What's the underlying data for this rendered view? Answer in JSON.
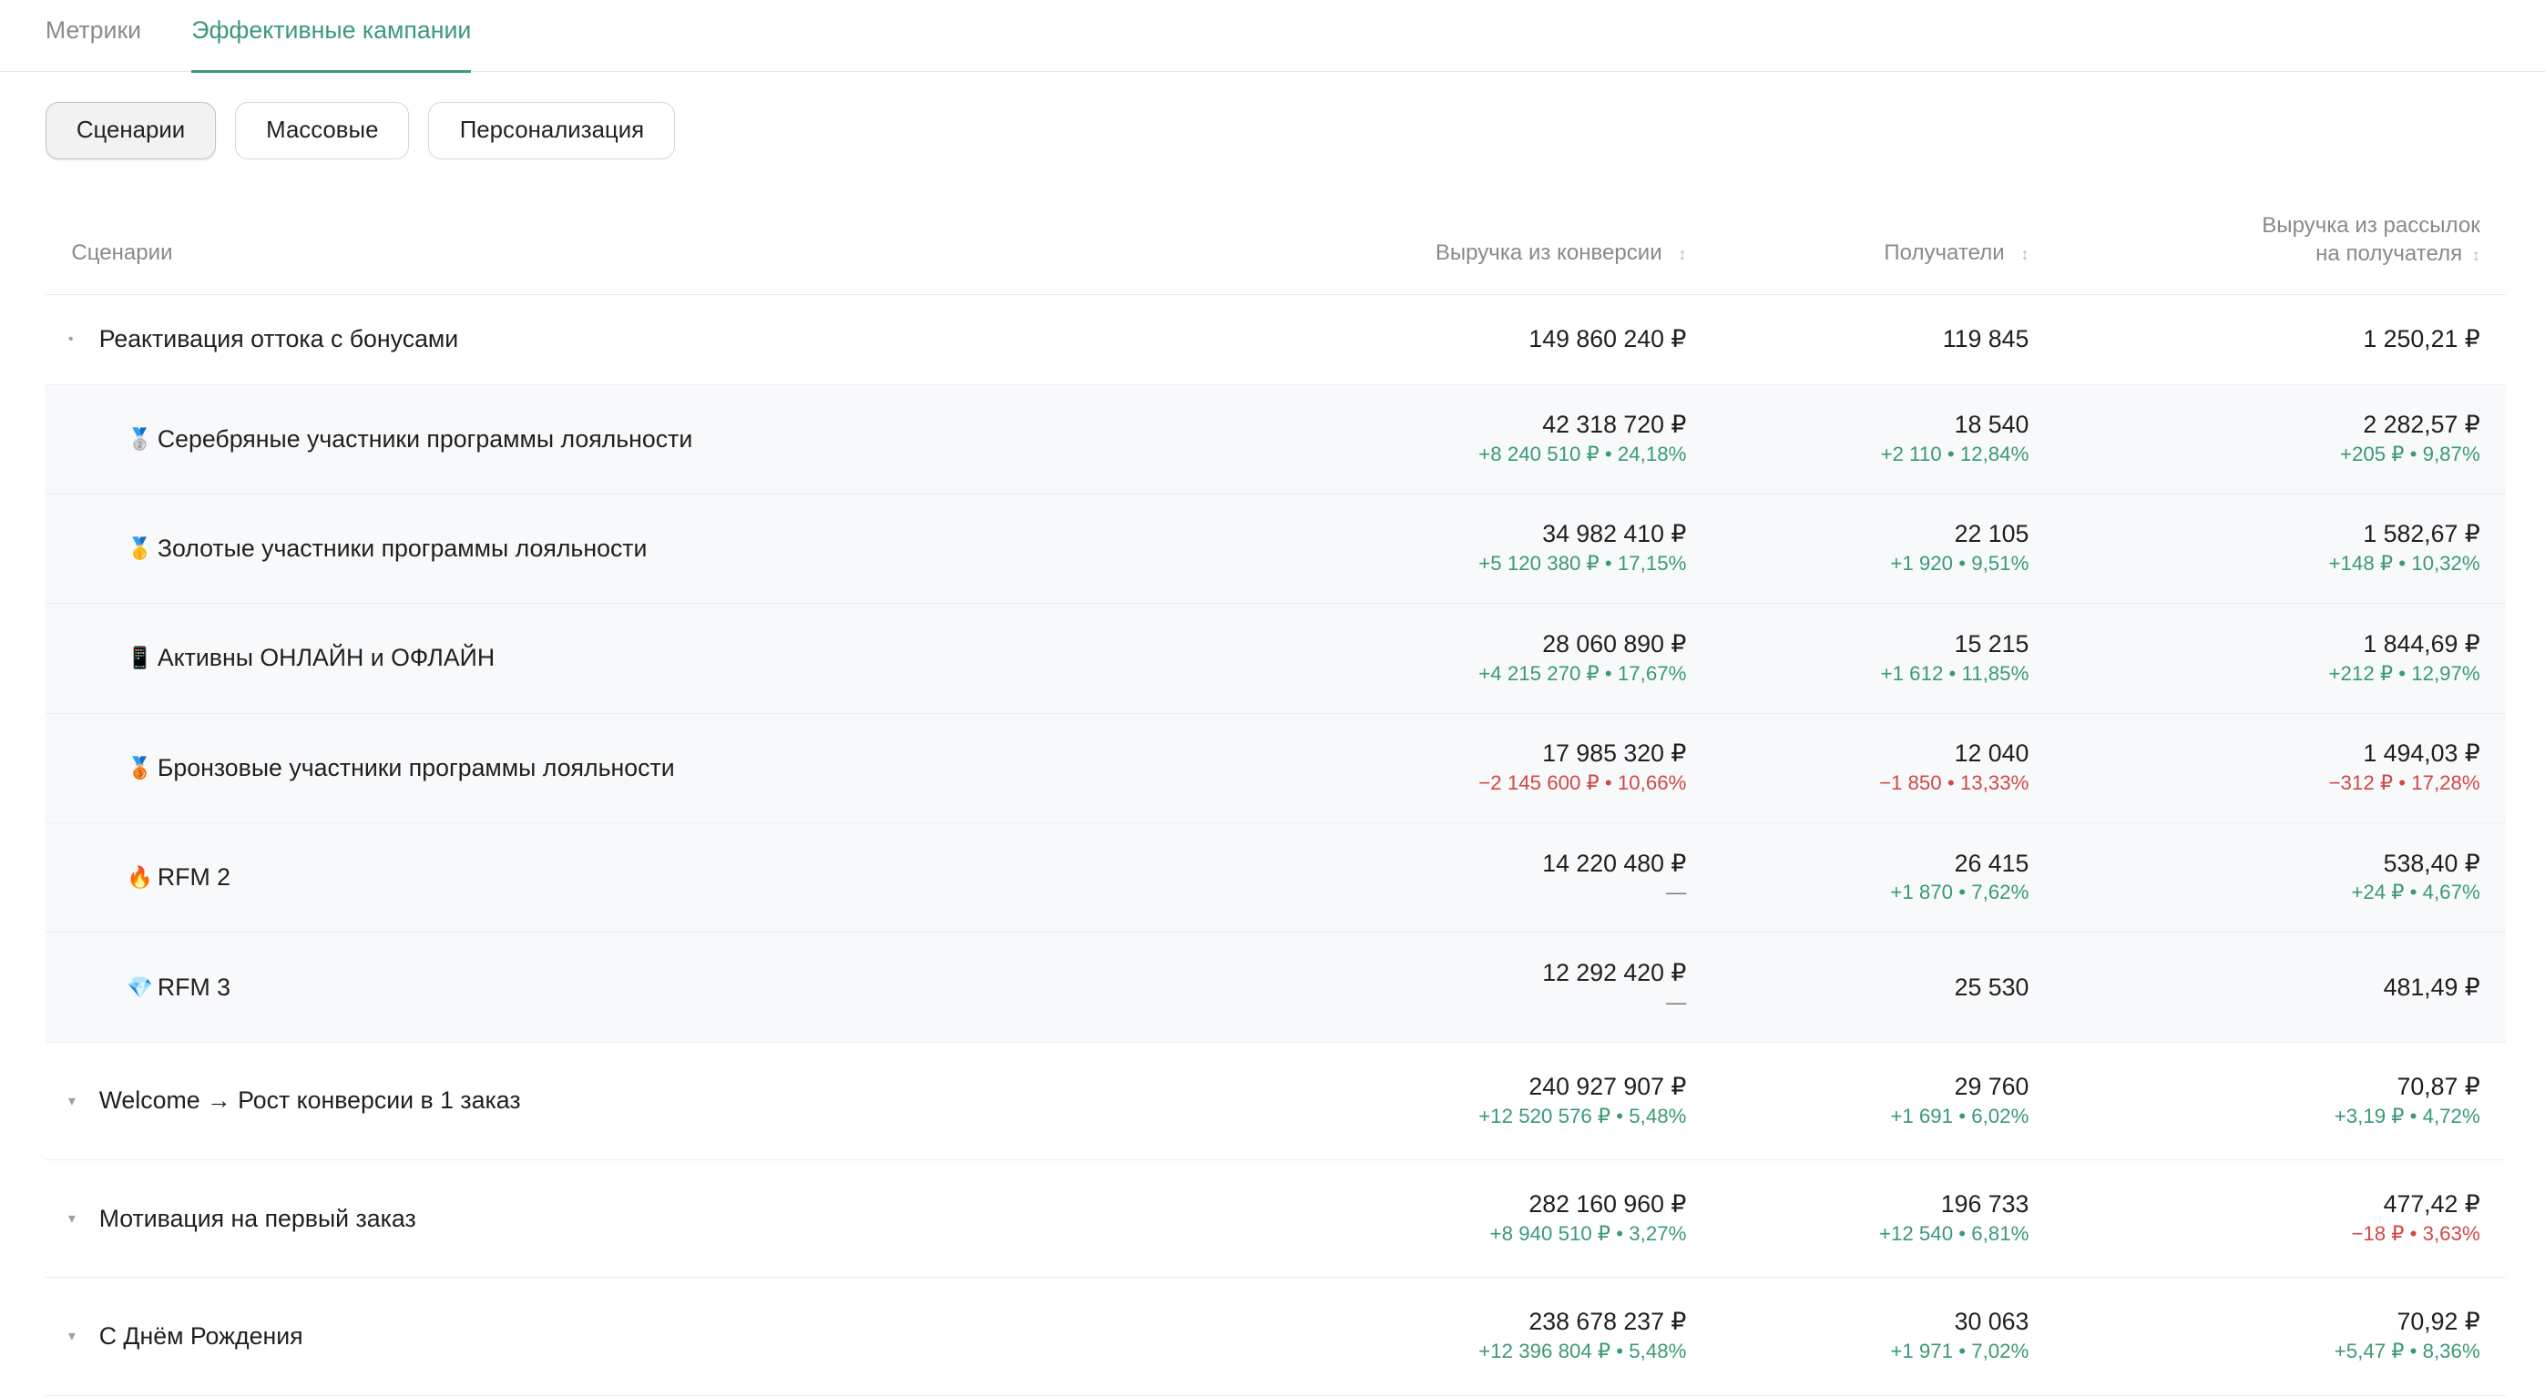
{
  "tabs": [
    {
      "label": "Метрики"
    },
    {
      "label": "Эффективные кампании"
    }
  ],
  "filters": [
    {
      "label": "Сценарии"
    },
    {
      "label": "Массовые"
    },
    {
      "label": "Персонализация"
    }
  ],
  "table": {
    "columns": [
      {
        "label": "Сценарии"
      },
      {
        "label": "Выручка из конверсии"
      },
      {
        "label": "Получатели"
      },
      {
        "label": "Выручка из рассылок",
        "label2": "на получателя"
      }
    ],
    "sort_icon": "↕",
    "caret_icon": "▾",
    "rows": [
      {
        "type": "parent",
        "name": "Реактивация оттока с бонусами",
        "caret": "•",
        "c1": "149 860 240 ₽",
        "c1d": "",
        "c2": "119 845",
        "c2d": "",
        "c3": "1 250,21 ₽",
        "c3d": ""
      },
      {
        "type": "child",
        "emoji": "🥈",
        "icon": "silver-medal-icon",
        "name": "Серебряные участники программы лояльности",
        "c1": "42 318 720 ₽",
        "c1d": "+8 240 510 ₽ • 24,18%",
        "c2": "18 540",
        "c2d": "+2 110 • 12,84%",
        "c3": "2 282,57 ₽",
        "c3d": "+205 ₽ • 9,87%"
      },
      {
        "type": "child",
        "emoji": "🥇",
        "icon": "gold-medal-icon",
        "name": "Золотые участники программы лояльности",
        "c1": "34 982 410 ₽",
        "c1d": "+5 120 380 ₽ • 17,15%",
        "c2": "22 105",
        "c2d": "+1 920 • 9,51%",
        "c3": "1 582,67 ₽",
        "c3d": "+148 ₽ • 10,32%"
      },
      {
        "type": "child",
        "emoji": "📱",
        "icon": "mobile-phone-icon",
        "name": "Активны ОНЛАЙН и ОФЛАЙН",
        "c1": "28 060 890 ₽",
        "c1d": "+4 215 270 ₽ • 17,67%",
        "c2": "15 215",
        "c2d": "+1 612 • 11,85%",
        "c3": "1 844,69 ₽",
        "c3d": "+212 ₽ • 12,97%"
      },
      {
        "type": "child",
        "emoji": "🥉",
        "icon": "bronze-medal-icon",
        "name": "Бронзовые участники программы лояльности",
        "c1": "17 985 320 ₽",
        "c1d": "−2 145 600 ₽ • 10,66%",
        "c2": "12 040",
        "c2d": "−1 850 • 13,33%",
        "c3": "1 494,03 ₽",
        "c3d": "−312 ₽ • 17,28%"
      },
      {
        "type": "child",
        "emoji": "🔥",
        "icon": "fire-icon",
        "name": "RFM 2",
        "c1": "14 220 480 ₽",
        "c1d": "—",
        "c2": "26 415",
        "c2d": "+1 870 • 7,62%",
        "c3": "538,40 ₽",
        "c3d": "+24 ₽ • 4,67%"
      },
      {
        "type": "child",
        "emoji": "💎",
        "icon": "diamond-icon",
        "name": "RFM 3",
        "c1": "12 292 420 ₽",
        "c1d": "—",
        "c2": "25 530",
        "c2d": "",
        "c3": "481,49 ₽",
        "c3d": ""
      },
      {
        "type": "parent",
        "name": "Welcome → Рост конверсии в 1 заказ",
        "caret": "▾",
        "c1": "240 927 907 ₽",
        "c1d": "+12 520 576 ₽ • 5,48%",
        "c2": "29 760",
        "c2d": "+1 691 • 6,02%",
        "c3": "70,87 ₽",
        "c3d": "+3,19 ₽ • 4,72%"
      },
      {
        "type": "parent",
        "name": "Мотивация на первый заказ",
        "caret": "▾",
        "c1": "282 160 960 ₽",
        "c1d": "+8 940 510 ₽ • 3,27%",
        "c2": "196 733",
        "c2d": "+12 540 • 6,81%",
        "c3": "477,42 ₽",
        "c3d": "−18 ₽ • 3,63%"
      },
      {
        "type": "parent",
        "name": "С Днём Рождения",
        "caret": "▾",
        "c1": "238 678 237 ₽",
        "c1d": "+12 396 804 ₽ • 5,48%",
        "c2": "30 063",
        "c2d": "+1 971 • 7,02%",
        "c3": "70,92 ₽",
        "c3d": "+5,47 ₽ • 8,36%"
      }
    ]
  },
  "colors": {
    "accent": "#3b9a72",
    "positive": "#3b9a72",
    "negative": "#d04848"
  }
}
